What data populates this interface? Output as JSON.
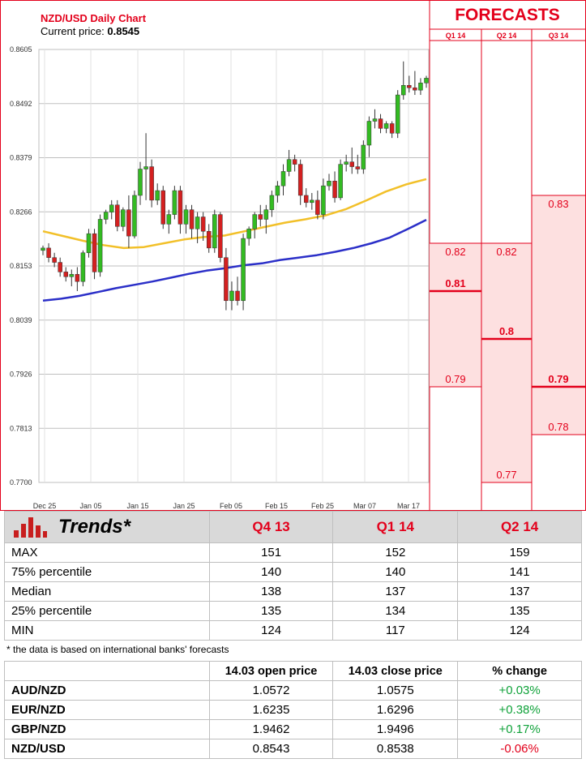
{
  "chart_data": {
    "type": "candlestick",
    "title": "NZD/USD Daily Chart",
    "subtitle_label": "Current price: ",
    "current_price": "0.8545",
    "ylim": [
      0.77,
      0.8605
    ],
    "y_ticks": [
      "0.8605",
      "0.8492",
      "0.8379",
      "0.8266",
      "0.8153",
      "0.8039",
      "0.7926",
      "0.7813",
      "0.7700"
    ],
    "x_ticks": [
      "Dec 25",
      "Jan 05",
      "Jan 15",
      "Jan 25",
      "Feb 05",
      "Feb 15",
      "Feb 25",
      "Mar 07",
      "Mar 17"
    ],
    "candles": [
      [
        0.8185,
        0.8195,
        0.8175,
        0.819
      ],
      [
        0.819,
        0.82,
        0.816,
        0.817
      ],
      [
        0.817,
        0.818,
        0.815,
        0.816
      ],
      [
        0.816,
        0.817,
        0.813,
        0.814
      ],
      [
        0.814,
        0.815,
        0.812,
        0.813
      ],
      [
        0.813,
        0.8145,
        0.811,
        0.8135
      ],
      [
        0.8135,
        0.815,
        0.81,
        0.812
      ],
      [
        0.812,
        0.8185,
        0.811,
        0.818
      ],
      [
        0.818,
        0.823,
        0.817,
        0.822
      ],
      [
        0.822,
        0.823,
        0.8125,
        0.814
      ],
      [
        0.814,
        0.826,
        0.813,
        0.825
      ],
      [
        0.825,
        0.827,
        0.824,
        0.8265
      ],
      [
        0.8265,
        0.829,
        0.825,
        0.828
      ],
      [
        0.828,
        0.829,
        0.8225,
        0.8235
      ],
      [
        0.8235,
        0.8275,
        0.8225,
        0.827
      ],
      [
        0.827,
        0.83,
        0.819,
        0.8215
      ],
      [
        0.8215,
        0.831,
        0.821,
        0.83
      ],
      [
        0.83,
        0.837,
        0.828,
        0.8355
      ],
      [
        0.8355,
        0.843,
        0.829,
        0.836
      ],
      [
        0.836,
        0.8375,
        0.8275,
        0.829
      ],
      [
        0.829,
        0.8325,
        0.828,
        0.831
      ],
      [
        0.831,
        0.832,
        0.823,
        0.824
      ],
      [
        0.824,
        0.827,
        0.822,
        0.826
      ],
      [
        0.826,
        0.832,
        0.825,
        0.831
      ],
      [
        0.831,
        0.832,
        0.822,
        0.824
      ],
      [
        0.824,
        0.828,
        0.822,
        0.827
      ],
      [
        0.827,
        0.828,
        0.821,
        0.823
      ],
      [
        0.823,
        0.8265,
        0.82,
        0.8255
      ],
      [
        0.8255,
        0.8265,
        0.8205,
        0.8225
      ],
      [
        0.8225,
        0.824,
        0.818,
        0.819
      ],
      [
        0.819,
        0.827,
        0.818,
        0.826
      ],
      [
        0.826,
        0.8265,
        0.816,
        0.817
      ],
      [
        0.817,
        0.819,
        0.806,
        0.808
      ],
      [
        0.808,
        0.812,
        0.806,
        0.81
      ],
      [
        0.81,
        0.813,
        0.807,
        0.808
      ],
      [
        0.808,
        0.822,
        0.806,
        0.821
      ],
      [
        0.821,
        0.8235,
        0.8195,
        0.823
      ],
      [
        0.823,
        0.8265,
        0.821,
        0.826
      ],
      [
        0.826,
        0.828,
        0.8235,
        0.825
      ],
      [
        0.825,
        0.828,
        0.822,
        0.827
      ],
      [
        0.827,
        0.831,
        0.8255,
        0.83
      ],
      [
        0.83,
        0.833,
        0.8285,
        0.832
      ],
      [
        0.832,
        0.8365,
        0.83,
        0.835
      ],
      [
        0.835,
        0.8395,
        0.834,
        0.8375
      ],
      [
        0.8375,
        0.8385,
        0.835,
        0.8365
      ],
      [
        0.8365,
        0.8375,
        0.828,
        0.83
      ],
      [
        0.83,
        0.8315,
        0.8275,
        0.8285
      ],
      [
        0.8285,
        0.8305,
        0.827,
        0.829
      ],
      [
        0.829,
        0.831,
        0.825,
        0.826
      ],
      [
        0.826,
        0.8335,
        0.825,
        0.832
      ],
      [
        0.832,
        0.8345,
        0.831,
        0.833
      ],
      [
        0.833,
        0.835,
        0.8285,
        0.8295
      ],
      [
        0.8295,
        0.8375,
        0.829,
        0.8365
      ],
      [
        0.8365,
        0.8385,
        0.835,
        0.837
      ],
      [
        0.837,
        0.84,
        0.8345,
        0.836
      ],
      [
        0.836,
        0.8385,
        0.8345,
        0.8355
      ],
      [
        0.8355,
        0.8415,
        0.8345,
        0.8405
      ],
      [
        0.8405,
        0.8465,
        0.838,
        0.8455
      ],
      [
        0.8455,
        0.848,
        0.844,
        0.846
      ],
      [
        0.846,
        0.847,
        0.843,
        0.844
      ],
      [
        0.844,
        0.8455,
        0.843,
        0.845
      ],
      [
        0.845,
        0.8455,
        0.842,
        0.843
      ],
      [
        0.843,
        0.852,
        0.842,
        0.851
      ],
      [
        0.851,
        0.858,
        0.85,
        0.853
      ],
      [
        0.853,
        0.855,
        0.8515,
        0.8525
      ],
      [
        0.8525,
        0.856,
        0.851,
        0.852
      ],
      [
        0.852,
        0.8545,
        0.851,
        0.8535
      ],
      [
        0.8535,
        0.855,
        0.8525,
        0.8545
      ]
    ],
    "ma_short": [
      0.8225,
      0.8215,
      0.8205,
      0.8196,
      0.819,
      0.8192,
      0.82,
      0.8208,
      0.8213,
      0.8216,
      0.8225,
      0.8234,
      0.8243,
      0.825,
      0.8258,
      0.8271,
      0.8289,
      0.8308,
      0.8323,
      0.8334
    ],
    "ma_long": [
      0.808,
      0.8084,
      0.809,
      0.8098,
      0.8106,
      0.8113,
      0.812,
      0.8128,
      0.8136,
      0.8143,
      0.8148,
      0.8154,
      0.8158,
      0.8165,
      0.817,
      0.8175,
      0.8182,
      0.819,
      0.82,
      0.8212,
      0.823,
      0.8249
    ],
    "colors": {
      "up": "#33bb22",
      "down": "#d42020",
      "ma_short": "#f2c029",
      "ma_long": "#2b2fc8",
      "grid": "#bfbfbf"
    }
  },
  "forecasts": {
    "title": "FORECASTS",
    "columns": [
      {
        "label": "Q1 14",
        "high": 0.82,
        "high_label": "0.82",
        "median": 0.81,
        "median_label": "0.81",
        "low": 0.79,
        "low_label": "0.79"
      },
      {
        "label": "Q2 14",
        "high": 0.82,
        "high_label": "0.82",
        "median": 0.8,
        "median_label": "0.8",
        "low": 0.77,
        "low_label": "0.77"
      },
      {
        "label": "Q3 14",
        "high": 0.83,
        "high_label": "0.83",
        "median": 0.79,
        "median_label": "0.79",
        "low": 0.78,
        "low_label": "0.78"
      }
    ],
    "colors": {
      "accent": "#e3001b",
      "band": "#fde0e0"
    }
  },
  "trends": {
    "title": "Trends*",
    "quarters": [
      "Q4 13",
      "Q1 14",
      "Q2 14"
    ],
    "rows": [
      {
        "label": "MAX",
        "values": [
          "151",
          "152",
          "159"
        ]
      },
      {
        "label": "75% percentile",
        "values": [
          "140",
          "140",
          "141"
        ]
      },
      {
        "label": "Median",
        "values": [
          "138",
          "137",
          "137"
        ]
      },
      {
        "label": "25% percentile",
        "values": [
          "135",
          "134",
          "135"
        ]
      },
      {
        "label": "MIN",
        "values": [
          "124",
          "117",
          "124"
        ]
      }
    ],
    "footnote": "* the data is based on international banks' forecasts"
  },
  "rates": {
    "headers": [
      "",
      "14.03 open price",
      "14.03 close price",
      "% change"
    ],
    "rows": [
      {
        "pair": "AUD/NZD",
        "open": "1.0572",
        "close": "1.0575",
        "change": "+0.03%"
      },
      {
        "pair": "EUR/NZD",
        "open": "1.6235",
        "close": "1.6296",
        "change": "+0.38%"
      },
      {
        "pair": "GBP/NZD",
        "open": "1.9462",
        "close": "1.9496",
        "change": "+0.17%"
      },
      {
        "pair": "NZD/USD",
        "open": "0.8543",
        "close": "0.8538",
        "change": "-0.06%"
      }
    ]
  }
}
